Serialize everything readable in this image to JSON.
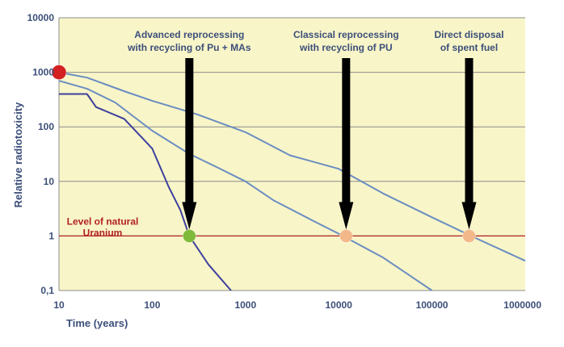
{
  "chart_data": {
    "type": "line",
    "title": "",
    "xlabel": "Time (years)",
    "ylabel": "Relative radiotoxicity",
    "xscale": "log",
    "yscale": "log",
    "xlim": [
      10,
      1000000
    ],
    "ylim": [
      0.1,
      10000
    ],
    "x_ticks": [
      {
        "value": 10,
        "label": "10"
      },
      {
        "value": 100,
        "label": "100"
      },
      {
        "value": 1000,
        "label": "1000"
      },
      {
        "value": 10000,
        "label": "10000"
      },
      {
        "value": 100000,
        "label": "100000"
      },
      {
        "value": 1000000,
        "label": "1000000"
      }
    ],
    "y_ticks": [
      {
        "value": 10000,
        "label": "10000"
      },
      {
        "value": 1000,
        "label": "1000"
      },
      {
        "value": 100,
        "label": "100"
      },
      {
        "value": 10,
        "label": "10"
      },
      {
        "value": 1,
        "label": "1"
      },
      {
        "value": 0.1,
        "label": "0,1"
      }
    ],
    "grid": true,
    "series": [
      {
        "name": "Direct disposal of spent fuel",
        "color": "#6a8dc2",
        "points": [
          [
            10,
            1000
          ],
          [
            20,
            800
          ],
          [
            50,
            450
          ],
          [
            100,
            300
          ],
          [
            300,
            170
          ],
          [
            1000,
            80
          ],
          [
            3000,
            30
          ],
          [
            10000,
            17
          ],
          [
            30000,
            6
          ],
          [
            100000,
            2.2
          ],
          [
            300000,
            0.9
          ],
          [
            1000000,
            0.35
          ]
        ]
      },
      {
        "name": "Classical reprocessing with recycling of PU",
        "color": "#6a8dc2",
        "points": [
          [
            10,
            700
          ],
          [
            20,
            500
          ],
          [
            40,
            280
          ],
          [
            100,
            85
          ],
          [
            250,
            32
          ],
          [
            500,
            18
          ],
          [
            1000,
            10
          ],
          [
            2000,
            4.5
          ],
          [
            5000,
            2
          ],
          [
            10000,
            1.1
          ],
          [
            30000,
            0.4
          ],
          [
            100000,
            0.1
          ]
        ]
      },
      {
        "name": "Advanced reprocessing with recycling of Pu + MAs",
        "color": "#3d3f9e",
        "points": [
          [
            10,
            400
          ],
          [
            20,
            400
          ],
          [
            25,
            230
          ],
          [
            50,
            140
          ],
          [
            80,
            60
          ],
          [
            100,
            40
          ],
          [
            150,
            8
          ],
          [
            200,
            3
          ],
          [
            250,
            1
          ],
          [
            400,
            0.3
          ],
          [
            700,
            0.1
          ]
        ]
      }
    ],
    "hline": {
      "value": 1,
      "color": "#b22222",
      "label_lines": [
        "Level of natural",
        "Uranium"
      ]
    },
    "arrows": [
      {
        "x": 250,
        "label_lines": [
          "Advanced reprocessing",
          "with recycling of Pu + MAs"
        ]
      },
      {
        "x": 12000,
        "label_lines": [
          "Classical reprocessing",
          "with recycling of PU"
        ]
      },
      {
        "x": 250000,
        "label_lines": [
          "Direct disposal",
          "of spent fuel"
        ]
      }
    ],
    "markers": [
      {
        "name": "start-marker",
        "x": 10,
        "y": 1000,
        "color": "#d42020",
        "size": 9
      },
      {
        "name": "advanced-uranium-crossing-marker",
        "x": 250,
        "y": 1,
        "color": "#7fba3a",
        "size": 8
      },
      {
        "name": "classical-uranium-crossing-marker",
        "x": 12000,
        "y": 1,
        "color": "#f3b88a",
        "size": 8
      },
      {
        "name": "direct-uranium-crossing-marker",
        "x": 250000,
        "y": 1,
        "color": "#f3b88a",
        "size": 8
      }
    ]
  },
  "colors": {
    "plot_background": "#f8f5c8",
    "grid": "#8c8c8c",
    "axis_text": "#3c4f7a",
    "arrow": "#000000"
  }
}
